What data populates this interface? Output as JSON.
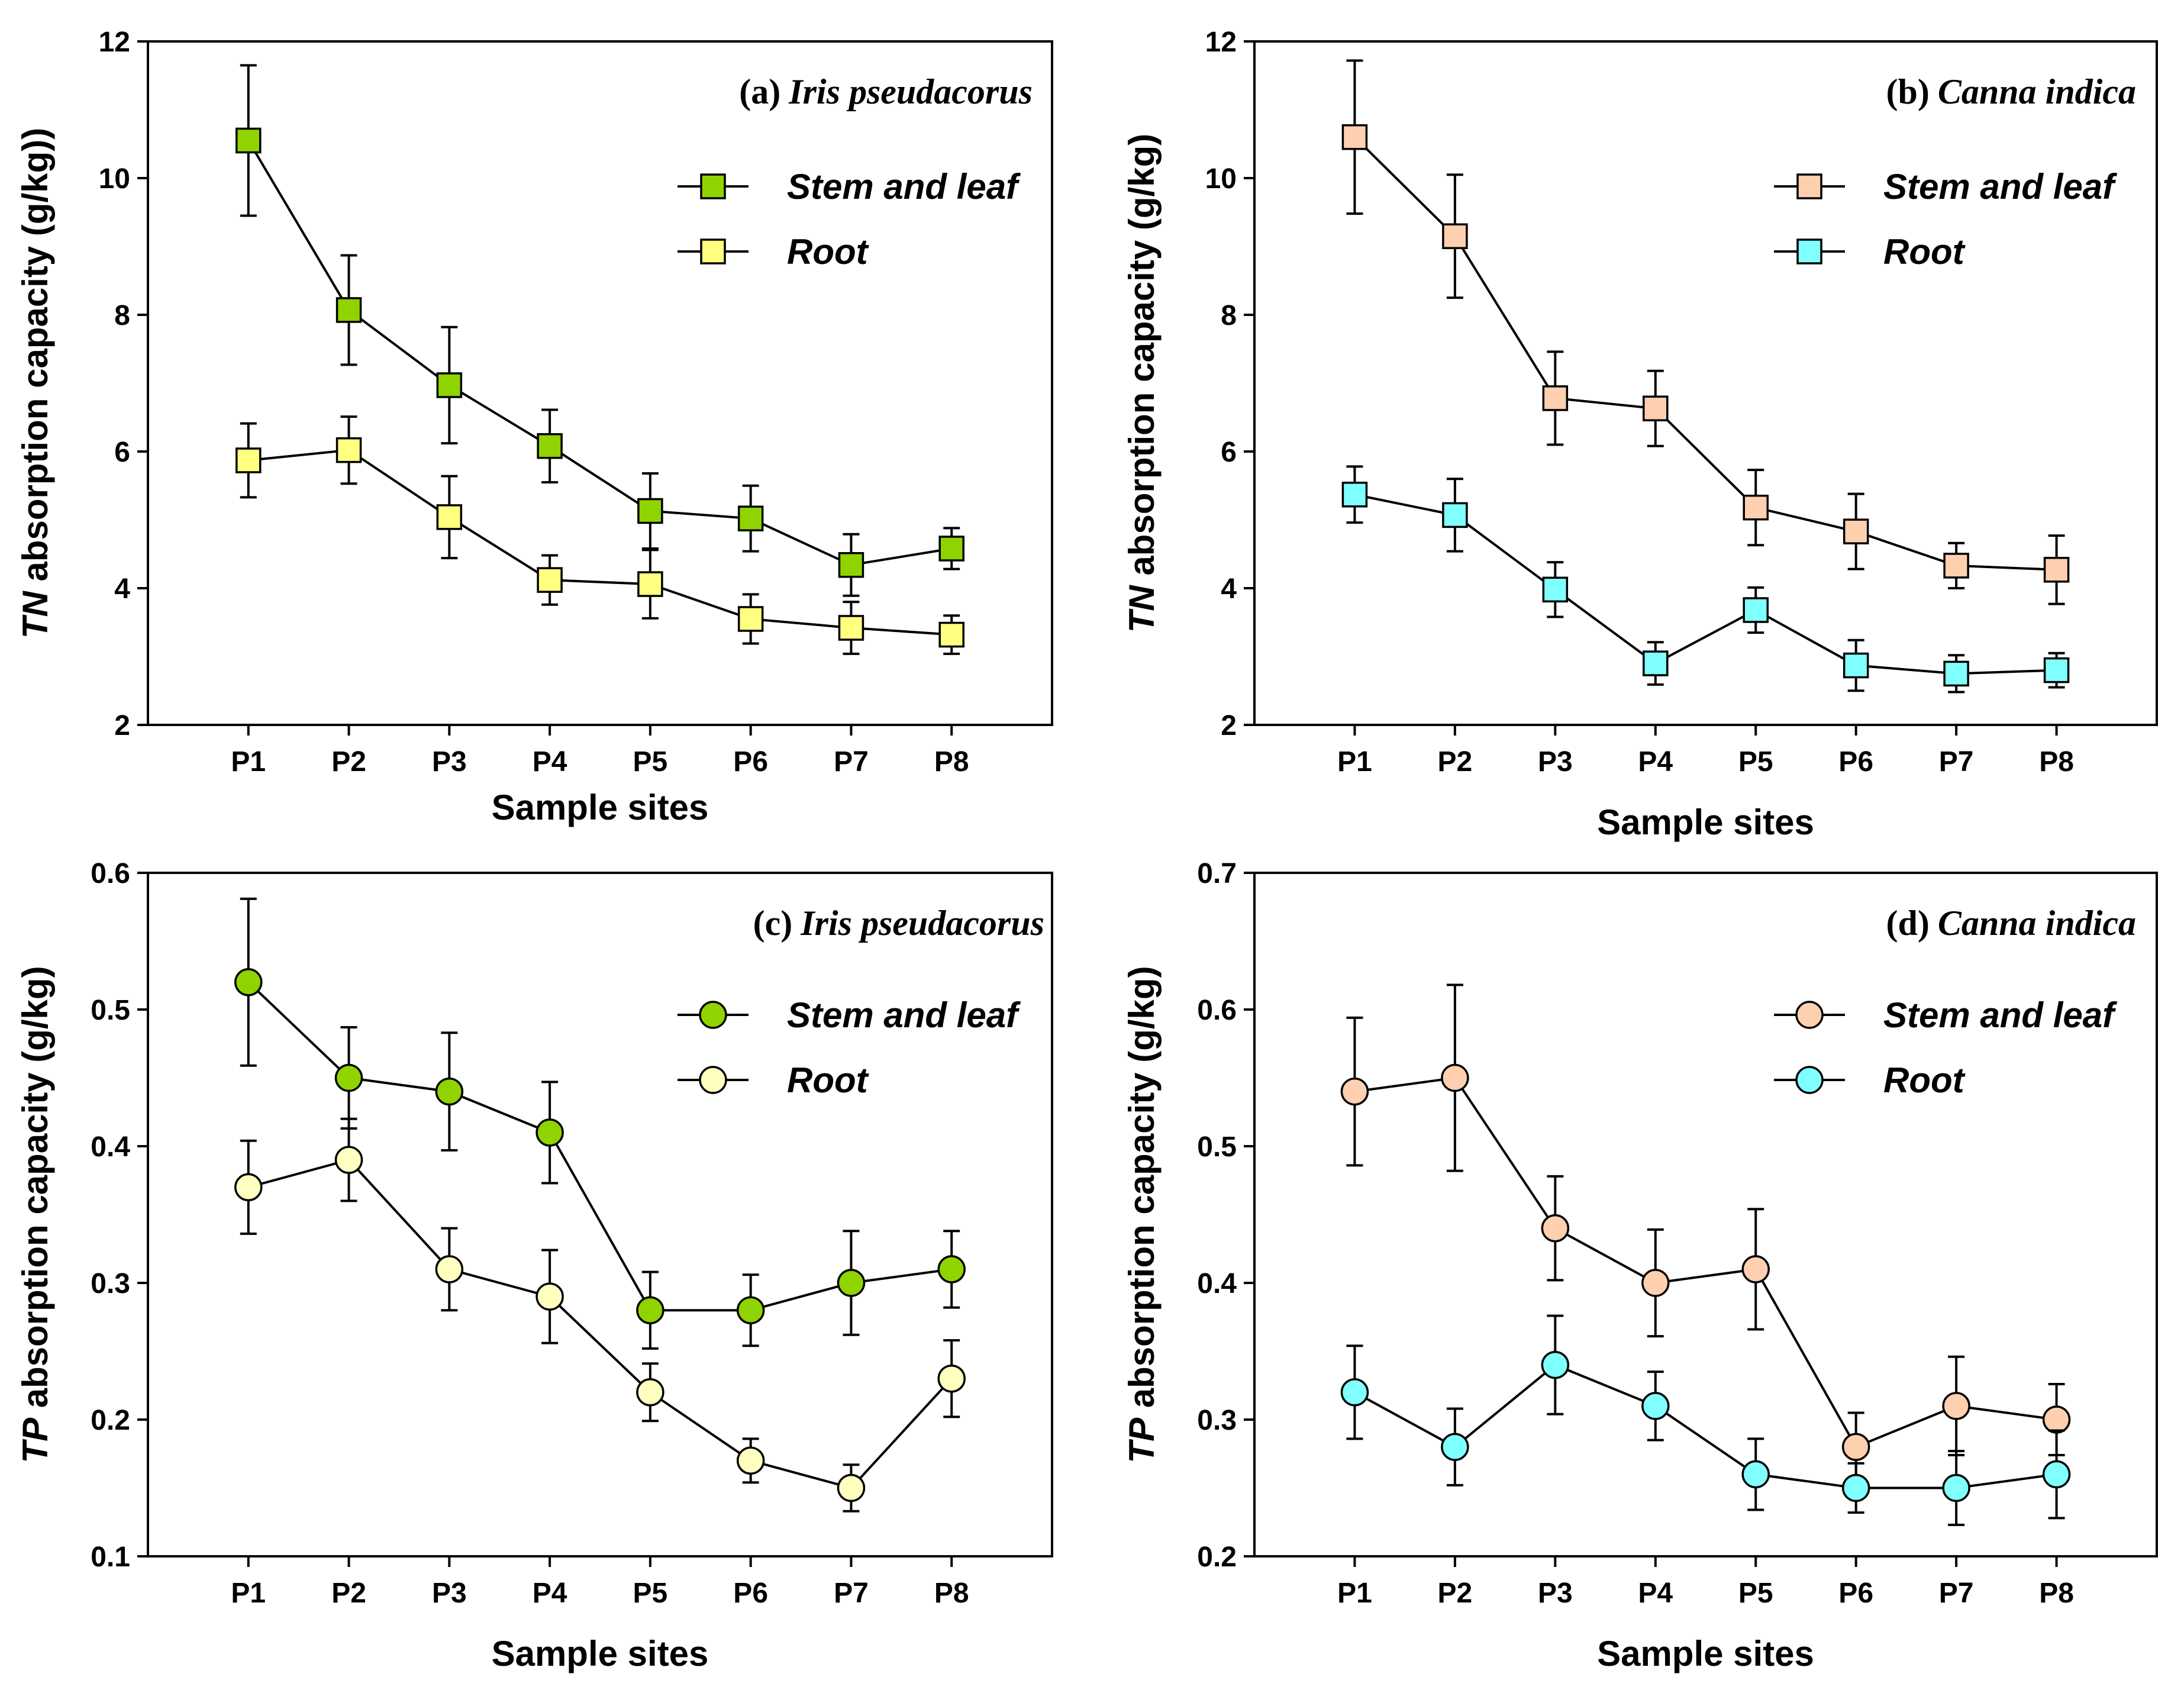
{
  "figure": {
    "background": "#ffffff"
  },
  "chart_data": [
    {
      "type": "line",
      "panel": "a",
      "title_prefix": "(a)",
      "title_species": "Iris pseudacorus",
      "xlabel": "Sample sites",
      "ylabel_italic": "TN",
      "ylabel_rest": " absorption capacity (g/kg))",
      "categories": [
        "P1",
        "P2",
        "P3",
        "P4",
        "P5",
        "P6",
        "P7",
        "P8"
      ],
      "ylim": [
        2,
        12
      ],
      "yticks": [
        2,
        4,
        6,
        8,
        10,
        12
      ],
      "ytick_labels": [
        "2",
        "4",
        "6",
        "8",
        "10",
        "12"
      ],
      "marker": "square",
      "legend_position": "top-right",
      "series": [
        {
          "name": "Stem and leaf",
          "color": "#8fd400",
          "values": [
            10.55,
            8.07,
            6.97,
            6.08,
            5.13,
            5.02,
            4.34,
            4.58
          ],
          "errors": [
            1.1,
            0.8,
            0.85,
            0.53,
            0.55,
            0.48,
            0.45,
            0.3
          ]
        },
        {
          "name": "Root",
          "color": "#ffff80",
          "values": [
            5.87,
            6.02,
            5.04,
            4.12,
            4.06,
            3.55,
            3.42,
            3.32
          ],
          "errors": [
            0.54,
            0.49,
            0.6,
            0.36,
            0.5,
            0.36,
            0.38,
            0.28
          ]
        }
      ]
    },
    {
      "type": "line",
      "panel": "b",
      "title_prefix": "(b)",
      "title_species": "Canna indica",
      "xlabel": "Sample sites",
      "ylabel_italic": "TN",
      "ylabel_rest": " absorption capacity (g/kg)",
      "categories": [
        "P1",
        "P2",
        "P3",
        "P4",
        "P5",
        "P6",
        "P7",
        "P8"
      ],
      "ylim": [
        2,
        12
      ],
      "yticks": [
        2,
        4,
        6,
        8,
        10,
        12
      ],
      "ytick_labels": [
        "2",
        "4",
        "6",
        "8",
        "10",
        "12"
      ],
      "marker": "square",
      "legend_position": "top-right",
      "series": [
        {
          "name": "Stem and leaf",
          "color": "#ffd0b0",
          "values": [
            10.6,
            9.15,
            6.78,
            6.63,
            5.18,
            4.83,
            4.33,
            4.27
          ],
          "errors": [
            1.12,
            0.9,
            0.68,
            0.55,
            0.55,
            0.55,
            0.33,
            0.5
          ]
        },
        {
          "name": "Root",
          "color": "#80ffff",
          "values": [
            5.37,
            5.07,
            3.98,
            2.9,
            3.68,
            2.87,
            2.75,
            2.8
          ],
          "errors": [
            0.41,
            0.53,
            0.4,
            0.31,
            0.33,
            0.37,
            0.27,
            0.25
          ]
        }
      ]
    },
    {
      "type": "line",
      "panel": "c",
      "title_prefix": "(c)",
      "title_species": "Iris pseudacorus",
      "xlabel": "Sample sites",
      "ylabel_italic": "TP",
      "ylabel_rest": " absorption capacity (g/kg)",
      "categories": [
        "P1",
        "P2",
        "P3",
        "P4",
        "P5",
        "P6",
        "P7",
        "P8"
      ],
      "ylim": [
        0.1,
        0.6
      ],
      "yticks": [
        0.1,
        0.2,
        0.3,
        0.4,
        0.5,
        0.6
      ],
      "ytick_labels": [
        "0.1",
        "0.2",
        "0.3",
        "0.4",
        "0.5",
        "0.6"
      ],
      "marker": "circle",
      "legend_position": "top-right",
      "series": [
        {
          "name": "Stem and leaf",
          "color": "#8fd400",
          "values": [
            0.52,
            0.45,
            0.44,
            0.41,
            0.28,
            0.28,
            0.3,
            0.31
          ],
          "errors": [
            0.061,
            0.037,
            0.043,
            0.037,
            0.028,
            0.026,
            0.038,
            0.028
          ]
        },
        {
          "name": "Root",
          "color": "#ffffc0",
          "values": [
            0.37,
            0.39,
            0.31,
            0.29,
            0.22,
            0.17,
            0.15,
            0.23
          ],
          "errors": [
            0.034,
            0.03,
            0.03,
            0.034,
            0.021,
            0.016,
            0.017,
            0.028
          ]
        }
      ]
    },
    {
      "type": "line",
      "panel": "d",
      "title_prefix": "(d)",
      "title_species": "Canna indica",
      "xlabel": "Sample sites",
      "ylabel_italic": "TP",
      "ylabel_rest": " absorption capacity (g/kg)",
      "categories": [
        "P1",
        "P2",
        "P3",
        "P4",
        "P5",
        "P6",
        "P7",
        "P8"
      ],
      "ylim": [
        0.2,
        0.7
      ],
      "yticks": [
        0.2,
        0.3,
        0.4,
        0.5,
        0.6,
        0.7
      ],
      "ytick_labels": [
        "0.2",
        "0.3",
        "0.4",
        "0.5",
        "0.6",
        "0.7"
      ],
      "marker": "circle",
      "legend_position": "top-right",
      "series": [
        {
          "name": "Stem and leaf",
          "color": "#ffd0b0",
          "values": [
            0.54,
            0.55,
            0.44,
            0.4,
            0.41,
            0.28,
            0.31,
            0.3
          ],
          "errors": [
            0.054,
            0.068,
            0.038,
            0.039,
            0.044,
            0.025,
            0.036,
            0.026
          ]
        },
        {
          "name": "Root",
          "color": "#80ffff",
          "values": [
            0.32,
            0.28,
            0.34,
            0.31,
            0.26,
            0.25,
            0.25,
            0.26
          ],
          "errors": [
            0.034,
            0.028,
            0.036,
            0.025,
            0.026,
            0.018,
            0.027,
            0.032
          ]
        }
      ]
    }
  ]
}
